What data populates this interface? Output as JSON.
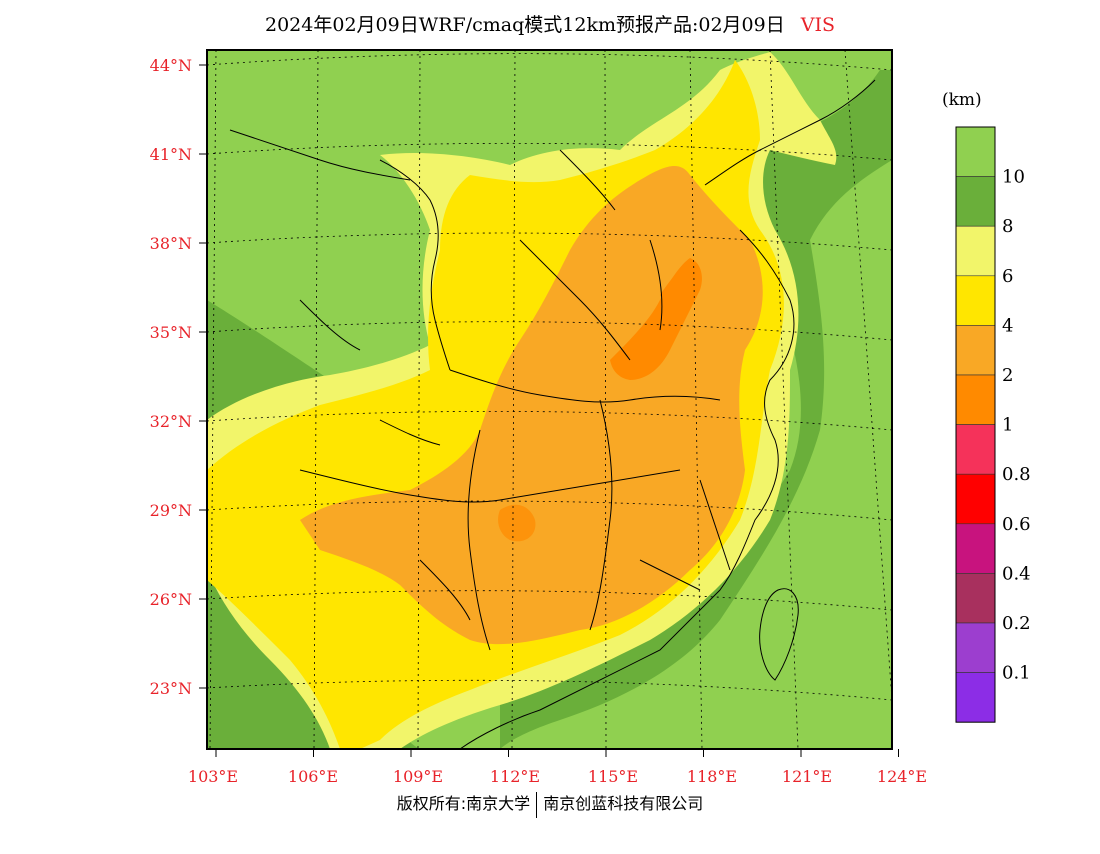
{
  "title": {
    "main": "2024年02月09日WRF/cmaq模式12km预报产品:02月09日",
    "variable": "VIS"
  },
  "colorbar": {
    "unit": "(km)",
    "levels": [
      {
        "label": "10",
        "color": "#90d050"
      },
      {
        "label": "8",
        "color": "#6aaf3a"
      },
      {
        "label": "6",
        "color": "#f2f56a"
      },
      {
        "label": "4",
        "color": "#ffe600"
      },
      {
        "label": "2",
        "color": "#f9a825"
      },
      {
        "label": "1",
        "color": "#ff8a00"
      },
      {
        "label": "0.8",
        "color": "#f5325a"
      },
      {
        "label": "0.6",
        "color": "#ff0000"
      },
      {
        "label": "0.4",
        "color": "#c8137e"
      },
      {
        "label": "0.2",
        "color": "#a8305e"
      },
      {
        "label": "0.1",
        "color": "#9c3ecf"
      },
      {
        "label": "",
        "color": "#8c2de6"
      }
    ]
  },
  "axes": {
    "lat_labels": [
      "44°N",
      "41°N",
      "38°N",
      "35°N",
      "32°N",
      "29°N",
      "26°N",
      "23°N"
    ],
    "lon_labels": [
      "103°E",
      "106°E",
      "109°E",
      "112°E",
      "115°E",
      "118°E",
      "121°E",
      "124°E"
    ]
  },
  "footer": {
    "left": "版权所有:南京大学",
    "right": "南京创蓝科技有限公司"
  }
}
